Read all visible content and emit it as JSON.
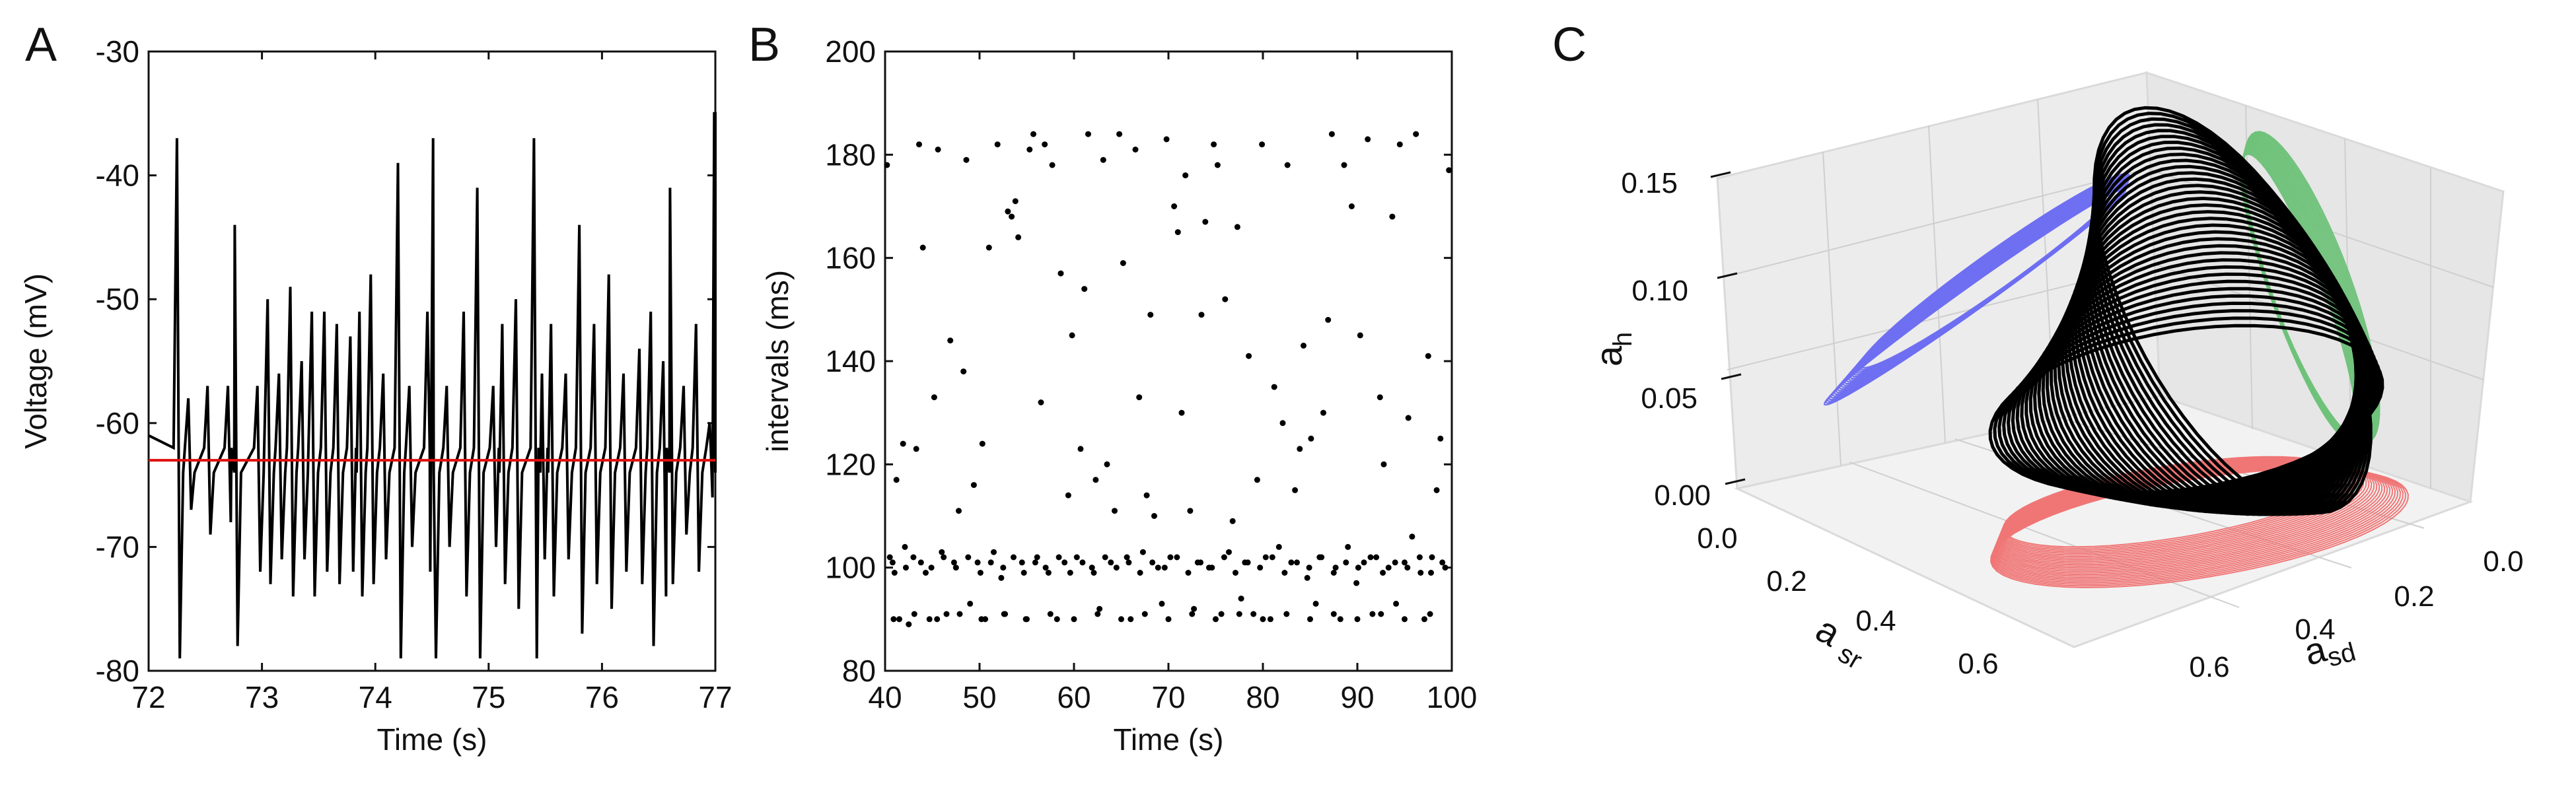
{
  "colors": {
    "trace": "#000000",
    "mean_line": "#e01010",
    "blue": "#6f6ff2",
    "green": "#6fc27a",
    "red": "#f07676",
    "pane": "#ececec"
  },
  "panels": {
    "a": "A",
    "b": "B",
    "c": "C"
  },
  "chart_data": [
    {
      "type": "line",
      "panel": "A",
      "xlabel": "Time (s)",
      "ylabel": "Voltage (mV)",
      "xlim": [
        72,
        77
      ],
      "ylim": [
        -80,
        -30
      ],
      "xticks": [
        72,
        73,
        74,
        75,
        76,
        77
      ],
      "yticks": [
        -80,
        -70,
        -60,
        -50,
        -40,
        -30
      ],
      "reference_line_y": -63,
      "spike_times": [
        72.25,
        72.35,
        72.52,
        72.7,
        72.76,
        72.96,
        73.05,
        73.15,
        73.25,
        73.35,
        73.44,
        73.55,
        73.66,
        73.78,
        73.86,
        73.96,
        74.07,
        74.2,
        74.3,
        74.46,
        74.51,
        74.63,
        74.78,
        74.9,
        75.04,
        75.12,
        75.24,
        75.4,
        75.47,
        75.55,
        75.68,
        75.8,
        75.93,
        76.06,
        76.19,
        76.33,
        76.43,
        76.54,
        76.6,
        76.72,
        76.83,
        76.95,
        76.99
      ],
      "spike_peaks": [
        -37,
        -58,
        -57,
        -57,
        -44,
        -57,
        -50,
        -56,
        -49,
        -55,
        -51,
        -51,
        -52,
        -53,
        -51,
        -48,
        -56,
        -39,
        -57,
        -51,
        -37,
        -57,
        -51,
        -41,
        -57,
        -52,
        -50,
        -37,
        -56,
        -52,
        -56,
        -44,
        -52,
        -48,
        -56,
        -54,
        -51,
        -55,
        -41,
        -57,
        -52,
        -60,
        -35
      ],
      "trough_values": [
        -79,
        -67,
        -69,
        -68,
        -78,
        -72,
        -73,
        -71,
        -74,
        -71,
        -74,
        -72,
        -73,
        -72,
        -74,
        -73,
        -71,
        -79,
        -70,
        -72,
        -79,
        -70,
        -74,
        -79,
        -70,
        -73,
        -75,
        -79,
        -71,
        -74,
        -71,
        -77,
        -73,
        -75,
        -72,
        -73,
        -78,
        -74,
        -73,
        -69,
        -72,
        -66,
        -64
      ]
    },
    {
      "type": "scatter",
      "panel": "B",
      "xlabel": "Time (s)",
      "ylabel": "intervals (ms)",
      "xlim": [
        40,
        100
      ],
      "ylim": [
        80,
        200
      ],
      "xticks": [
        40,
        50,
        60,
        70,
        80,
        90,
        100
      ],
      "yticks": [
        80,
        100,
        120,
        140,
        160,
        180,
        200
      ],
      "series_points": [
        [
          40.2,
          178
        ],
        [
          40.8,
          101
        ],
        [
          41.2,
          117
        ],
        [
          41.5,
          90
        ],
        [
          41.9,
          124
        ],
        [
          42.1,
          104
        ],
        [
          42.5,
          89
        ],
        [
          43.0,
          102
        ],
        [
          43.3,
          123
        ],
        [
          43.6,
          182
        ],
        [
          44.0,
          162
        ],
        [
          44.3,
          99
        ],
        [
          44.7,
          90
        ],
        [
          45.2,
          133
        ],
        [
          45.6,
          181
        ],
        [
          46.0,
          103
        ],
        [
          46.5,
          91
        ],
        [
          46.9,
          144
        ],
        [
          47.3,
          101
        ],
        [
          47.8,
          111
        ],
        [
          48.3,
          138
        ],
        [
          48.6,
          179
        ],
        [
          49.0,
          93
        ],
        [
          49.4,
          116
        ],
        [
          49.8,
          101
        ],
        [
          50.3,
          124
        ],
        [
          50.6,
          90
        ],
        [
          51.0,
          162
        ],
        [
          51.5,
          103
        ],
        [
          51.9,
          182
        ],
        [
          52.3,
          98
        ],
        [
          52.7,
          91
        ],
        [
          53.0,
          169
        ],
        [
          53.4,
          168
        ],
        [
          53.8,
          171
        ],
        [
          54.1,
          164
        ],
        [
          54.5,
          101
        ],
        [
          54.9,
          90
        ],
        [
          55.3,
          181
        ],
        [
          55.7,
          184
        ],
        [
          56.1,
          102
        ],
        [
          56.5,
          132
        ],
        [
          56.9,
          182
        ],
        [
          57.3,
          99
        ],
        [
          57.7,
          178
        ],
        [
          58.2,
          90
        ],
        [
          58.6,
          157
        ],
        [
          59.0,
          101
        ],
        [
          59.4,
          114
        ],
        [
          59.8,
          145
        ],
        [
          60.3,
          102
        ],
        [
          60.7,
          123
        ],
        [
          61.1,
          154
        ],
        [
          61.5,
          184
        ],
        [
          61.9,
          100
        ],
        [
          62.3,
          117
        ],
        [
          62.7,
          92
        ],
        [
          63.1,
          179
        ],
        [
          63.5,
          120
        ],
        [
          63.9,
          101
        ],
        [
          64.3,
          111
        ],
        [
          64.8,
          184
        ],
        [
          65.2,
          159
        ],
        [
          65.6,
          102
        ],
        [
          66.0,
          90
        ],
        [
          66.5,
          181
        ],
        [
          66.9,
          133
        ],
        [
          67.3,
          103
        ],
        [
          67.7,
          114
        ],
        [
          68.1,
          149
        ],
        [
          68.5,
          110
        ],
        [
          68.9,
          100
        ],
        [
          69.3,
          93
        ],
        [
          69.8,
          183
        ],
        [
          70.2,
          102
        ],
        [
          70.6,
          170
        ],
        [
          71.0,
          165
        ],
        [
          71.4,
          130
        ],
        [
          71.8,
          176
        ],
        [
          72.3,
          111
        ],
        [
          72.7,
          92
        ],
        [
          73.1,
          101
        ],
        [
          73.5,
          149
        ],
        [
          73.9,
          167
        ],
        [
          74.3,
          100
        ],
        [
          74.8,
          182
        ],
        [
          75.2,
          178
        ],
        [
          75.6,
          91
        ],
        [
          76.0,
          152
        ],
        [
          76.4,
          103
        ],
        [
          76.8,
          109
        ],
        [
          77.3,
          166
        ],
        [
          77.7,
          94
        ],
        [
          78.1,
          101
        ],
        [
          78.5,
          141
        ],
        [
          79.0,
          91
        ],
        [
          79.4,
          117
        ],
        [
          79.9,
          182
        ],
        [
          80.3,
          102
        ],
        [
          80.8,
          90
        ],
        [
          81.2,
          135
        ],
        [
          81.7,
          104
        ],
        [
          82.1,
          128
        ],
        [
          82.6,
          178
        ],
        [
          83.0,
          101
        ],
        [
          83.4,
          115
        ],
        [
          83.9,
          123
        ],
        [
          84.3,
          143
        ],
        [
          84.7,
          98
        ],
        [
          85.1,
          125
        ],
        [
          85.6,
          93
        ],
        [
          86.0,
          102
        ],
        [
          86.4,
          130
        ],
        [
          86.9,
          148
        ],
        [
          87.3,
          184
        ],
        [
          87.7,
          100
        ],
        [
          88.2,
          90
        ],
        [
          88.6,
          178
        ],
        [
          89.0,
          104
        ],
        [
          89.4,
          170
        ],
        [
          89.9,
          97
        ],
        [
          90.3,
          145
        ],
        [
          90.7,
          101
        ],
        [
          91.1,
          183
        ],
        [
          91.6,
          91
        ],
        [
          92.0,
          102
        ],
        [
          92.4,
          133
        ],
        [
          92.8,
          120
        ],
        [
          93.3,
          100
        ],
        [
          93.7,
          168
        ],
        [
          94.1,
          93
        ],
        [
          94.5,
          182
        ],
        [
          95.0,
          101
        ],
        [
          95.4,
          129
        ],
        [
          95.8,
          106
        ],
        [
          96.2,
          184
        ],
        [
          96.7,
          99
        ],
        [
          97.1,
          90
        ],
        [
          97.5,
          141
        ],
        [
          97.9,
          102
        ],
        [
          98.4,
          115
        ],
        [
          98.8,
          125
        ],
        [
          99.3,
          100
        ],
        [
          99.7,
          177
        ],
        [
          40.5,
          102
        ],
        [
          41.0,
          99
        ],
        [
          42.2,
          100
        ],
        [
          43.8,
          101
        ],
        [
          44.9,
          100
        ],
        [
          46.2,
          102
        ],
        [
          47.5,
          100
        ],
        [
          48.8,
          102
        ],
        [
          50.1,
          99
        ],
        [
          51.2,
          101
        ],
        [
          52.5,
          100
        ],
        [
          53.6,
          102
        ],
        [
          54.7,
          99
        ],
        [
          55.9,
          101
        ],
        [
          57.0,
          100
        ],
        [
          58.4,
          102
        ],
        [
          59.6,
          99
        ],
        [
          60.9,
          101
        ],
        [
          62.1,
          99
        ],
        [
          63.3,
          102
        ],
        [
          64.5,
          100
        ],
        [
          65.8,
          101
        ],
        [
          67.0,
          99
        ],
        [
          68.3,
          101
        ],
        [
          69.6,
          100
        ],
        [
          70.9,
          102
        ],
        [
          72.1,
          99
        ],
        [
          73.4,
          101
        ],
        [
          74.6,
          100
        ],
        [
          75.9,
          102
        ],
        [
          77.1,
          99
        ],
        [
          78.4,
          101
        ],
        [
          79.7,
          100
        ],
        [
          81.0,
          102
        ],
        [
          82.3,
          99
        ],
        [
          83.6,
          101
        ],
        [
          84.9,
          100
        ],
        [
          86.2,
          102
        ],
        [
          87.5,
          99
        ],
        [
          88.8,
          101
        ],
        [
          90.1,
          100
        ],
        [
          91.4,
          102
        ],
        [
          92.7,
          99
        ],
        [
          94.0,
          101
        ],
        [
          95.3,
          100
        ],
        [
          96.6,
          102
        ],
        [
          97.8,
          99
        ],
        [
          99.0,
          101
        ],
        [
          40.9,
          90
        ],
        [
          43.1,
          91
        ],
        [
          45.5,
          90
        ],
        [
          47.9,
          91
        ],
        [
          50.2,
          90
        ],
        [
          52.6,
          91
        ],
        [
          55.0,
          90
        ],
        [
          57.5,
          91
        ],
        [
          60.0,
          90
        ],
        [
          62.5,
          91
        ],
        [
          65.0,
          90
        ],
        [
          67.5,
          91
        ],
        [
          70.0,
          90
        ],
        [
          72.5,
          91
        ],
        [
          75.0,
          90
        ],
        [
          77.5,
          91
        ],
        [
          80.0,
          90
        ],
        [
          82.5,
          91
        ],
        [
          85.0,
          90
        ],
        [
          87.5,
          91
        ],
        [
          90.0,
          90
        ],
        [
          92.5,
          91
        ],
        [
          95.0,
          90
        ],
        [
          97.7,
          91
        ]
      ]
    },
    {
      "type": "3d-line",
      "panel": "C",
      "xlabel": "asd",
      "ylabel": "asr",
      "zlabel": "ah",
      "x_label_main": "a",
      "x_label_sub": "sd",
      "y_label_main": "a",
      "y_label_sub": "sr",
      "z_label_main": "a",
      "z_label_sub": "h",
      "xticks": [
        "0.0",
        "0.2",
        "0.4",
        "0.6"
      ],
      "yticks": [
        "0.0",
        "0.2",
        "0.4",
        "0.6"
      ],
      "zticks": [
        "0.00",
        "0.05",
        "0.10",
        "0.15"
      ],
      "projections": [
        "ah-asr plane (blue)",
        "ah-asd plane (green)",
        "asd-asr plane (red)"
      ]
    }
  ]
}
